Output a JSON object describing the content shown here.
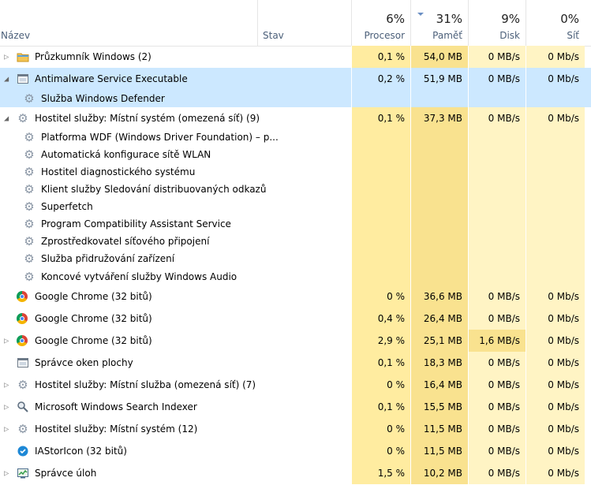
{
  "header": {
    "name_label": "Název",
    "status_label": "Stav",
    "cpu": {
      "pct": "6%",
      "label": "Procesor"
    },
    "mem": {
      "pct": "31%",
      "label": "Paměť"
    },
    "disk": {
      "pct": "9%",
      "label": "Disk"
    },
    "net": {
      "pct": "0%",
      "label": "Síť"
    }
  },
  "colors": {
    "heat_light": "#fff4c4",
    "heat_mid": "#ffeca0",
    "heat_strong": "#f9e28f",
    "selected": "#cce8ff",
    "header_text": "#4c607a"
  },
  "rows": [
    {
      "name": "Průzkumník Windows (2)",
      "icon": "folder-icon",
      "expander": "collapsed",
      "cpu": "0,1 %",
      "mem": "54,0 MB",
      "disk": "0 MB/s",
      "net": "0 Mb/s"
    },
    {
      "name": "Antimalware Service Executable",
      "icon": "window-icon",
      "expander": "expanded",
      "cpu": "0,2 %",
      "mem": "51,9 MB",
      "disk": "0 MB/s",
      "net": "0 Mb/s",
      "selected": true
    },
    {
      "name": "Služba Windows Defender",
      "icon": "gear-icon",
      "child": true,
      "selected": true
    },
    {
      "name": "Hostitel služby: Místní systém (omezená síť) (9)",
      "icon": "gear-icon",
      "expander": "expanded",
      "cpu": "0,1 %",
      "mem": "37,3 MB",
      "disk": "0 MB/s",
      "net": "0 Mb/s"
    },
    {
      "name": "Platforma WDF (Windows Driver Foundation) – p...",
      "icon": "gear-icon",
      "child": true
    },
    {
      "name": "Automatická konfigurace sítě WLAN",
      "icon": "gear-icon",
      "child": true
    },
    {
      "name": "Hostitel diagnostického systému",
      "icon": "gear-icon",
      "child": true
    },
    {
      "name": "Klient služby Sledování distribuovaných odkazů",
      "icon": "gear-icon",
      "child": true
    },
    {
      "name": "Superfetch",
      "icon": "gear-icon",
      "child": true
    },
    {
      "name": "Program Compatibility Assistant Service",
      "icon": "gear-icon",
      "child": true
    },
    {
      "name": "Zprostředkovatel síťového připojení",
      "icon": "gear-icon",
      "child": true
    },
    {
      "name": "Služba přidružování zařízení",
      "icon": "gear-icon",
      "child": true
    },
    {
      "name": "Koncové vytváření služby Windows Audio",
      "icon": "gear-icon",
      "child": true
    },
    {
      "name": "Google Chrome (32 bitů)",
      "icon": "chrome-icon",
      "cpu": "0 %",
      "mem": "36,6 MB",
      "disk": "0 MB/s",
      "net": "0 Mb/s"
    },
    {
      "name": "Google Chrome (32 bitů)",
      "icon": "chrome-icon",
      "cpu": "0,4 %",
      "mem": "26,4 MB",
      "disk": "0 MB/s",
      "net": "0 Mb/s"
    },
    {
      "name": "Google Chrome (32 bitů)",
      "icon": "chrome-icon",
      "expander": "collapsed",
      "cpu": "2,9 %",
      "mem": "25,1 MB",
      "disk": "1,6 MB/s",
      "net": "0 Mb/s",
      "disk_hot": true
    },
    {
      "name": "Správce oken plochy",
      "icon": "window-icon",
      "cpu": "0,1 %",
      "mem": "18,3 MB",
      "disk": "0 MB/s",
      "net": "0 Mb/s"
    },
    {
      "name": "Hostitel služby: Místní služba (omezená síť) (7)",
      "icon": "gear-icon",
      "expander": "collapsed",
      "cpu": "0 %",
      "mem": "16,4 MB",
      "disk": "0 MB/s",
      "net": "0 Mb/s"
    },
    {
      "name": "Microsoft Windows Search Indexer",
      "icon": "search-indexer-icon",
      "expander": "collapsed",
      "cpu": "0,1 %",
      "mem": "15,5 MB",
      "disk": "0 MB/s",
      "net": "0 Mb/s"
    },
    {
      "name": "Hostitel služby: Místní systém (12)",
      "icon": "gear-icon",
      "expander": "collapsed",
      "cpu": "0 %",
      "mem": "11,5 MB",
      "disk": "0 MB/s",
      "net": "0 Mb/s"
    },
    {
      "name": "IAStorIcon (32 bitů)",
      "icon": "storage-icon",
      "cpu": "0 %",
      "mem": "11,5 MB",
      "disk": "0 MB/s",
      "net": "0 Mb/s"
    },
    {
      "name": "Správce úloh",
      "icon": "taskmgr-icon",
      "expander": "collapsed",
      "cpu": "1,5 %",
      "mem": "10,2 MB",
      "disk": "0 MB/s",
      "net": "0 Mb/s"
    }
  ]
}
